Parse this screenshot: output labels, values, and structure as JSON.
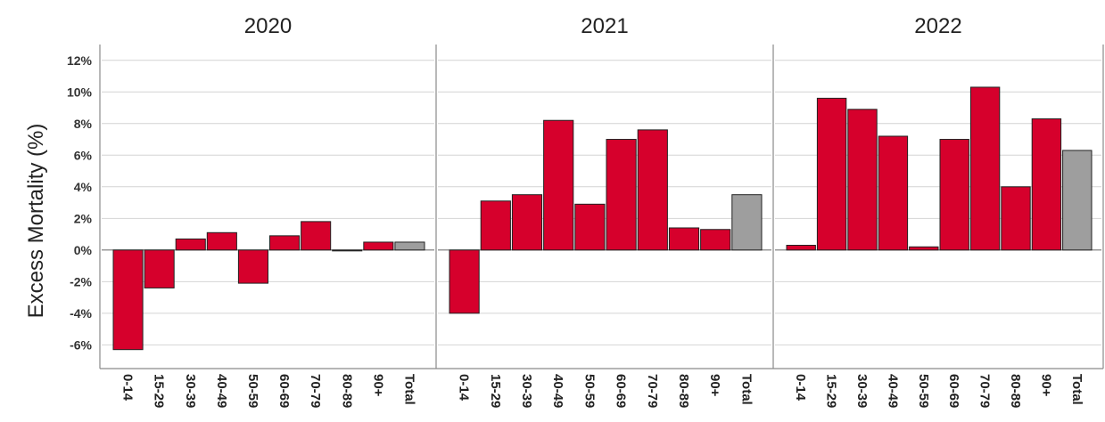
{
  "chart_data": {
    "type": "bar",
    "ylabel": "Excess Mortality (%)",
    "ylim": [
      -7.5,
      13
    ],
    "yticks": [
      -6,
      -4,
      -2,
      0,
      2,
      4,
      6,
      8,
      10,
      12
    ],
    "ytick_labels": [
      "-6%",
      "-4%",
      "-2%",
      "0%",
      "2%",
      "4%",
      "6%",
      "8%",
      "10%",
      "12%"
    ],
    "grid": true,
    "colors": {
      "age_group": "#d6002c",
      "total": "#9e9e9e"
    },
    "categories": [
      "0-14",
      "15-29",
      "30-39",
      "40-49",
      "50-59",
      "60-69",
      "70-79",
      "80-89",
      "90+",
      "Total"
    ],
    "panels": [
      {
        "title": "2020",
        "values": [
          -6.3,
          -2.4,
          0.7,
          1.1,
          -2.1,
          0.9,
          1.8,
          0.0,
          0.5,
          0.5
        ]
      },
      {
        "title": "2021",
        "values": [
          -4.0,
          3.1,
          3.5,
          8.2,
          2.9,
          7.0,
          7.6,
          1.4,
          1.3,
          3.5
        ]
      },
      {
        "title": "2022",
        "values": [
          0.3,
          9.6,
          8.9,
          7.2,
          0.2,
          7.0,
          10.3,
          4.0,
          8.3,
          6.3
        ]
      }
    ]
  }
}
